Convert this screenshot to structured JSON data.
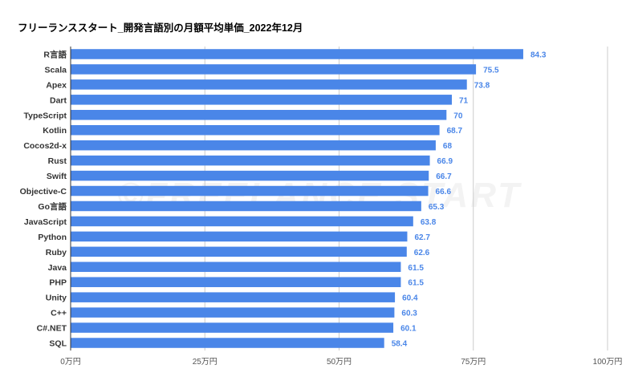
{
  "chart_data": {
    "type": "bar",
    "orientation": "horizontal",
    "title": "フリーランススタート_開発言語別の月額平均単価_2022年12月",
    "watermark": "©FREELANCE START",
    "categories": [
      "R言語",
      "Scala",
      "Apex",
      "Dart",
      "TypeScript",
      "Kotlin",
      "Cocos2d-x",
      "Rust",
      "Swift",
      "Objective-C",
      "Go言語",
      "JavaScript",
      "Python",
      "Ruby",
      "Java",
      "PHP",
      "Unity",
      "C++",
      "C#.NET",
      "SQL"
    ],
    "values": [
      84.3,
      75.5,
      73.8,
      71,
      70,
      68.7,
      68,
      66.9,
      66.7,
      66.6,
      65.3,
      63.8,
      62.7,
      62.6,
      61.5,
      61.5,
      60.4,
      60.3,
      60.1,
      58.4
    ],
    "value_labels": [
      "84.3",
      "75.5",
      "73.8",
      "71",
      "70",
      "68.7",
      "68",
      "66.9",
      "66.7",
      "66.6",
      "65.3",
      "63.8",
      "62.7",
      "62.6",
      "61.5",
      "61.5",
      "60.4",
      "60.3",
      "60.1",
      "58.4"
    ],
    "xlim": [
      0,
      100
    ],
    "xticks": [
      0,
      25,
      50,
      75,
      100
    ],
    "xtick_labels": [
      "0万円",
      "25万円",
      "50万円",
      "75万円",
      "100万円"
    ],
    "xlabel": "",
    "ylabel": "",
    "grid": true,
    "bar_color": "#4a86e8",
    "label_color": "#4a86e8",
    "grid_color": "#cccccc"
  }
}
